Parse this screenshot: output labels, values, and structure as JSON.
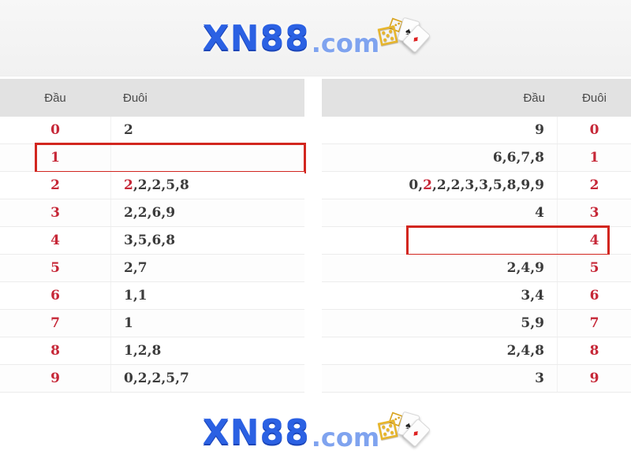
{
  "colors": {
    "brand_blue": "#2b61e3",
    "tld_blue": "#7fa3ef",
    "accent_red": "#c62737",
    "highlight_border_red": "#d2261f",
    "header_gray": "#e2e2e2",
    "value_text": "#3b3b3b",
    "gold_dice": "#e8b62a"
  },
  "logo": {
    "brand": "XN88",
    "tld": ".com",
    "icons": {
      "spade_suit": "♠",
      "diamond_suit": "♦",
      "die_face_five": "⚄",
      "die_face_three": "⚂"
    }
  },
  "tables": [
    {
      "side": "left",
      "index_header": "Đầu",
      "values_header": "Đuôi",
      "rows": [
        {
          "index": "0",
          "segments": [
            {
              "text": "2",
              "red": false
            }
          ],
          "highlight": false
        },
        {
          "index": "1",
          "segments": [],
          "highlight": true
        },
        {
          "index": "2",
          "segments": [
            {
              "text": "2",
              "red": true
            },
            {
              "text": ",2,2,5,8",
              "red": false
            }
          ],
          "highlight": false
        },
        {
          "index": "3",
          "segments": [
            {
              "text": "2,2,6,9",
              "red": false
            }
          ],
          "highlight": false
        },
        {
          "index": "4",
          "segments": [
            {
              "text": "3,5,6,8",
              "red": false
            }
          ],
          "highlight": false
        },
        {
          "index": "5",
          "segments": [
            {
              "text": "2,7",
              "red": false
            }
          ],
          "highlight": false
        },
        {
          "index": "6",
          "segments": [
            {
              "text": "1,1",
              "red": false
            }
          ],
          "highlight": false
        },
        {
          "index": "7",
          "segments": [
            {
              "text": "1",
              "red": false
            }
          ],
          "highlight": false
        },
        {
          "index": "8",
          "segments": [
            {
              "text": "1,2,8",
              "red": false
            }
          ],
          "highlight": false
        },
        {
          "index": "9",
          "segments": [
            {
              "text": "0,2,2,5,7",
              "red": false
            }
          ],
          "highlight": false
        }
      ]
    },
    {
      "side": "right",
      "index_header": "Đuôi",
      "values_header": "Đầu",
      "rows": [
        {
          "index": "0",
          "segments": [
            {
              "text": "9",
              "red": false
            }
          ],
          "highlight": false
        },
        {
          "index": "1",
          "segments": [
            {
              "text": "6,6,7,8",
              "red": false
            }
          ],
          "highlight": false
        },
        {
          "index": "2",
          "segments": [
            {
              "text": "0,",
              "red": false
            },
            {
              "text": "2",
              "red": true
            },
            {
              "text": ",2,2,3,3,5,8,9,9",
              "red": false
            }
          ],
          "highlight": false
        },
        {
          "index": "3",
          "segments": [
            {
              "text": "4",
              "red": false
            }
          ],
          "highlight": false
        },
        {
          "index": "4",
          "segments": [],
          "highlight": true
        },
        {
          "index": "5",
          "segments": [
            {
              "text": "2,4,9",
              "red": false
            }
          ],
          "highlight": false
        },
        {
          "index": "6",
          "segments": [
            {
              "text": "3,4",
              "red": false
            }
          ],
          "highlight": false
        },
        {
          "index": "7",
          "segments": [
            {
              "text": "5,9",
              "red": false
            }
          ],
          "highlight": false
        },
        {
          "index": "8",
          "segments": [
            {
              "text": "2,4,8",
              "red": false
            }
          ],
          "highlight": false
        },
        {
          "index": "9",
          "segments": [
            {
              "text": "3",
              "red": false
            }
          ],
          "highlight": false
        }
      ]
    }
  ]
}
